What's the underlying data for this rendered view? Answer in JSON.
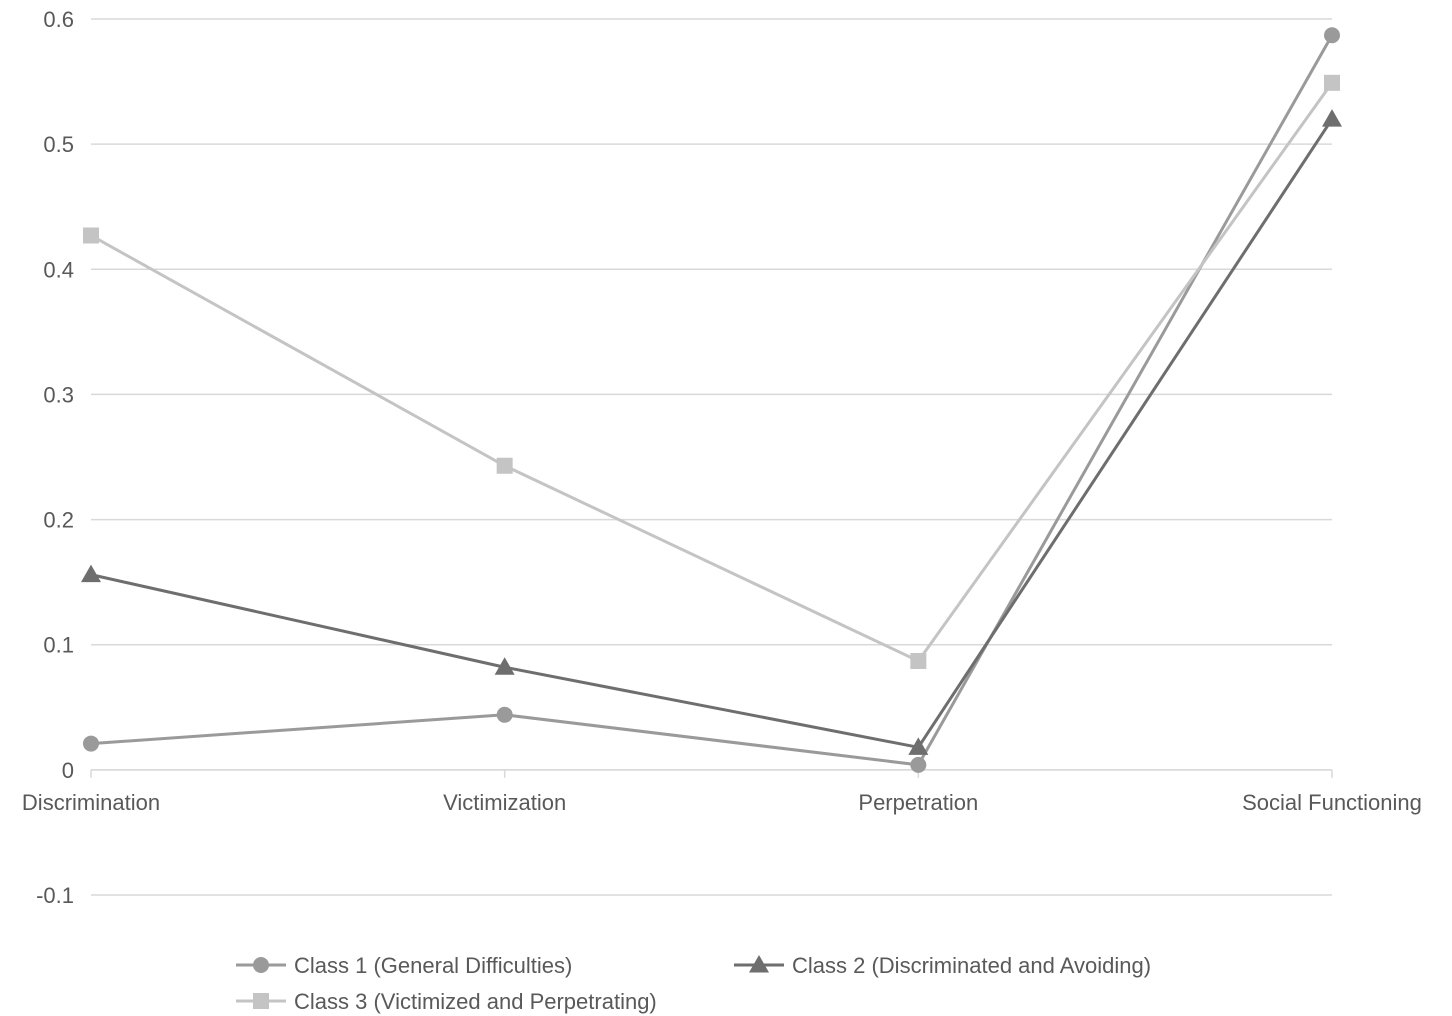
{
  "chart_data": {
    "type": "line",
    "categories": [
      "Discrimination",
      "Victimization",
      "Perpetration",
      "Social Functioning"
    ],
    "ylim": [
      -0.1,
      0.6
    ],
    "yticks": [
      -0.1,
      0,
      0.1,
      0.2,
      0.3,
      0.4,
      0.5,
      0.6
    ],
    "ytick_labels": [
      "-0.1",
      "0",
      "0.1",
      "0.2",
      "0.3",
      "0.4",
      "0.5",
      "0.6"
    ],
    "grid": true,
    "legend_position": "bottom",
    "series": [
      {
        "name": "Class 1 (General Difficulties)",
        "values": [
          0.021,
          0.044,
          0.004,
          0.587
        ],
        "color": "#9a9a9a",
        "marker": "circle"
      },
      {
        "name": "Class 2 (Discriminated and Avoiding)",
        "values": [
          0.156,
          0.082,
          0.018,
          0.52
        ],
        "color": "#6e6e6e",
        "marker": "triangle"
      },
      {
        "name": "Class 3 (Victimized and Perpetrating)",
        "values": [
          0.427,
          0.243,
          0.087,
          0.549
        ],
        "color": "#c4c4c4",
        "marker": "square"
      }
    ]
  }
}
